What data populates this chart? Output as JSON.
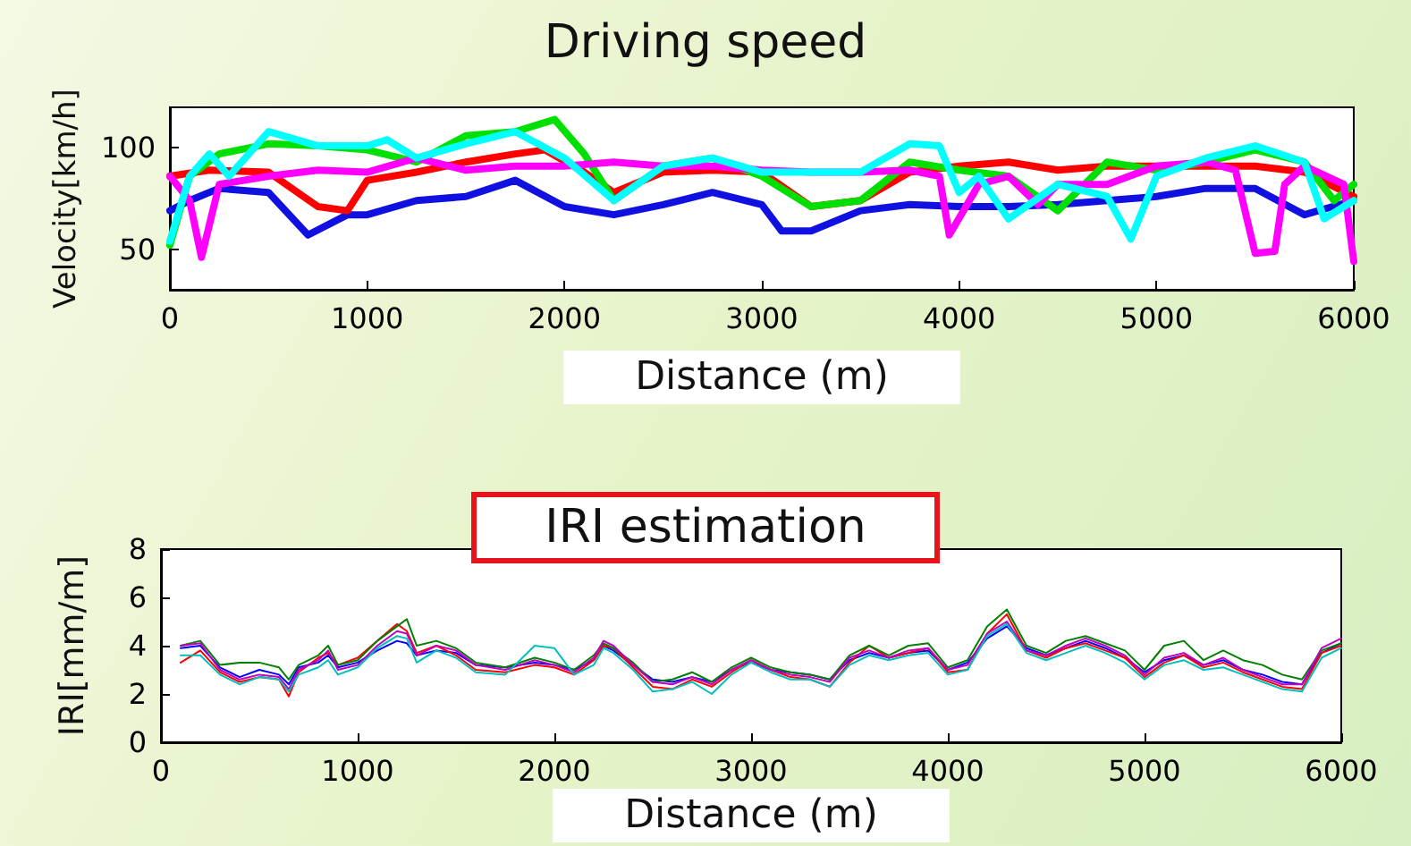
{
  "chart_data": [
    {
      "type": "line",
      "title": "Driving speed",
      "xlabel": "Distance (m)",
      "ylabel": "Velocity[km/h]",
      "xlim": [
        0,
        6000
      ],
      "xticks": [
        0,
        1000,
        2000,
        3000,
        4000,
        5000,
        6000
      ],
      "ylim": [
        30,
        120
      ],
      "yticks": [
        50,
        100
      ],
      "grid": false,
      "marker": "none",
      "series": [
        {
          "color": "#1010e0",
          "x": [
            0,
            100,
            250,
            500,
            700,
            900,
            1000,
            1250,
            1500,
            1750,
            2000,
            2250,
            2500,
            2750,
            3000,
            3100,
            3250,
            3500,
            3750,
            4000,
            4250,
            4500,
            4750,
            5000,
            5250,
            5500,
            5750,
            6000
          ],
          "values": [
            69,
            74,
            80,
            78,
            57,
            67,
            67,
            74,
            76,
            84,
            71,
            67,
            72,
            78,
            72,
            59,
            59,
            69,
            72,
            71,
            71,
            72,
            74,
            76,
            80,
            80,
            67,
            74
          ]
        },
        {
          "color": "#ff0000",
          "x": [
            0,
            200,
            500,
            750,
            900,
            1000,
            1250,
            1500,
            1750,
            1900,
            2100,
            2250,
            2500,
            2750,
            3000,
            3250,
            3500,
            3750,
            4000,
            4250,
            4500,
            4750,
            5000,
            5250,
            5500,
            5750,
            6000
          ],
          "values": [
            86,
            89,
            88,
            71,
            69,
            84,
            88,
            93,
            97,
            99,
            88,
            78,
            88,
            89,
            88,
            71,
            74,
            88,
            91,
            93,
            89,
            91,
            91,
            91,
            91,
            88,
            76
          ]
        },
        {
          "color": "#00e000",
          "x": [
            0,
            100,
            250,
            500,
            750,
            1000,
            1250,
            1500,
            1750,
            1950,
            2100,
            2250,
            2500,
            2750,
            3000,
            3250,
            3500,
            3750,
            4000,
            4250,
            4500,
            4750,
            5000,
            5250,
            5500,
            5750,
            5900,
            6000
          ],
          "values": [
            52,
            86,
            97,
            102,
            101,
            99,
            93,
            106,
            108,
            114,
            97,
            74,
            91,
            95,
            86,
            71,
            74,
            93,
            89,
            86,
            69,
            93,
            89,
            93,
            99,
            93,
            74,
            82
          ]
        },
        {
          "color": "#ff00ff",
          "x": [
            0,
            100,
            160,
            250,
            500,
            750,
            1000,
            1250,
            1500,
            1750,
            2000,
            2250,
            2500,
            2750,
            3000,
            3250,
            3500,
            3750,
            3900,
            3950,
            4100,
            4250,
            4400,
            4500,
            4750,
            5000,
            5250,
            5400,
            5500,
            5600,
            5650,
            5750,
            5950,
            6000
          ],
          "values": [
            86,
            74,
            46,
            82,
            86,
            89,
            88,
            95,
            89,
            91,
            91,
            93,
            91,
            91,
            89,
            88,
            88,
            89,
            86,
            57,
            82,
            86,
            72,
            82,
            82,
            91,
            93,
            89,
            48,
            49,
            82,
            91,
            82,
            44
          ]
        },
        {
          "color": "#00ffff",
          "x": [
            0,
            100,
            200,
            300,
            500,
            750,
            1000,
            1100,
            1250,
            1500,
            1750,
            2000,
            2250,
            2500,
            2750,
            3000,
            3250,
            3500,
            3750,
            3900,
            4000,
            4100,
            4250,
            4500,
            4750,
            4870,
            5000,
            5250,
            5500,
            5750,
            5850,
            6000
          ],
          "values": [
            54,
            86,
            97,
            86,
            108,
            101,
            101,
            104,
            95,
            102,
            108,
            95,
            74,
            91,
            95,
            88,
            88,
            88,
            102,
            101,
            78,
            86,
            65,
            82,
            76,
            55,
            86,
            95,
            101,
            93,
            65,
            74
          ]
        }
      ]
    },
    {
      "type": "line",
      "title": "IRI estimation",
      "xlabel": "Distance (m)",
      "ylabel": "IRI[mm/m]",
      "xlim": [
        0,
        6000
      ],
      "xticks": [
        0,
        1000,
        2000,
        3000,
        4000,
        5000,
        6000
      ],
      "ylim": [
        0,
        8
      ],
      "yticks": [
        0,
        2,
        4,
        6,
        8
      ],
      "grid": false,
      "marker": "none",
      "series": [
        {
          "color": "#0000ff",
          "x": [
            100,
            200,
            300,
            400,
            500,
            600,
            650,
            700,
            800,
            850,
            900,
            1000,
            1100,
            1200,
            1250,
            1300,
            1400,
            1500,
            1600,
            1750,
            1900,
            2000,
            2100,
            2200,
            2250,
            2300,
            2400,
            2500,
            2600,
            2700,
            2800,
            2900,
            3000,
            3100,
            3200,
            3300,
            3400,
            3500,
            3600,
            3700,
            3800,
            3900,
            4000,
            4100,
            4200,
            4300,
            4400,
            4500,
            4600,
            4700,
            4800,
            4900,
            5000,
            5100,
            5200,
            5300,
            5400,
            5500,
            5600,
            5700,
            5800,
            5900,
            6000
          ],
          "values": [
            3.9,
            4.0,
            3.1,
            2.7,
            3.0,
            2.8,
            2.4,
            3.1,
            3.3,
            3.6,
            3.1,
            3.3,
            3.8,
            4.2,
            4.1,
            3.6,
            3.8,
            3.7,
            3.2,
            3.1,
            3.3,
            3.2,
            3.0,
            3.4,
            4.0,
            3.8,
            3.2,
            2.6,
            2.5,
            2.7,
            2.5,
            3.0,
            3.3,
            3.0,
            2.9,
            2.8,
            2.6,
            3.4,
            3.7,
            3.5,
            3.7,
            3.8,
            3.0,
            3.3,
            4.3,
            4.8,
            3.9,
            3.6,
            3.9,
            4.2,
            3.9,
            3.5,
            2.9,
            3.4,
            3.6,
            3.2,
            3.4,
            3.0,
            2.8,
            2.5,
            2.4,
            3.7,
            4.1
          ]
        },
        {
          "color": "#ff0000",
          "x": [
            100,
            200,
            300,
            400,
            500,
            600,
            650,
            700,
            800,
            850,
            900,
            1000,
            1100,
            1200,
            1250,
            1300,
            1400,
            1500,
            1600,
            1750,
            1900,
            2000,
            2100,
            2200,
            2250,
            2300,
            2400,
            2500,
            2600,
            2700,
            2800,
            2900,
            3000,
            3100,
            3200,
            3300,
            3400,
            3500,
            3600,
            3700,
            3800,
            3900,
            4000,
            4100,
            4200,
            4300,
            4400,
            4500,
            4600,
            4700,
            4800,
            4900,
            5000,
            5100,
            5200,
            5300,
            5400,
            5500,
            5600,
            5700,
            5800,
            5900,
            6000
          ],
          "values": [
            3.3,
            3.8,
            2.9,
            2.5,
            2.7,
            2.6,
            1.9,
            2.9,
            3.5,
            3.7,
            3.2,
            3.5,
            4.2,
            4.9,
            4.6,
            3.7,
            4.0,
            3.6,
            3.0,
            2.9,
            3.2,
            3.1,
            2.8,
            3.4,
            4.0,
            3.9,
            3.1,
            2.3,
            2.2,
            2.6,
            2.3,
            2.9,
            3.4,
            3.0,
            2.7,
            2.6,
            2.3,
            3.3,
            4.0,
            3.5,
            3.7,
            3.9,
            2.9,
            3.0,
            4.5,
            5.3,
            3.8,
            3.5,
            3.9,
            4.1,
            3.8,
            3.5,
            2.7,
            3.3,
            3.6,
            3.1,
            3.3,
            2.9,
            2.6,
            2.3,
            2.2,
            3.7,
            4.0
          ]
        },
        {
          "color": "#008000",
          "x": [
            100,
            200,
            300,
            400,
            500,
            600,
            650,
            700,
            800,
            850,
            900,
            1000,
            1100,
            1200,
            1250,
            1300,
            1400,
            1500,
            1600,
            1750,
            1900,
            2000,
            2100,
            2200,
            2250,
            2300,
            2400,
            2500,
            2600,
            2700,
            2800,
            2900,
            3000,
            3100,
            3200,
            3300,
            3400,
            3500,
            3600,
            3700,
            3800,
            3900,
            4000,
            4100,
            4200,
            4300,
            4400,
            4500,
            4600,
            4700,
            4800,
            4900,
            5000,
            5100,
            5200,
            5300,
            5400,
            5500,
            5600,
            5700,
            5800,
            5900,
            6000
          ],
          "values": [
            4.0,
            4.2,
            3.2,
            3.3,
            3.3,
            3.1,
            2.6,
            3.2,
            3.6,
            4.0,
            3.2,
            3.4,
            4.2,
            4.8,
            5.1,
            4.0,
            4.2,
            3.9,
            3.3,
            3.1,
            3.5,
            3.3,
            3.0,
            3.6,
            4.1,
            3.9,
            3.3,
            2.5,
            2.6,
            2.9,
            2.5,
            3.1,
            3.5,
            3.1,
            2.9,
            2.8,
            2.6,
            3.6,
            4.0,
            3.6,
            4.0,
            4.1,
            3.1,
            3.4,
            4.8,
            5.5,
            4.0,
            3.7,
            4.2,
            4.4,
            4.1,
            3.8,
            3.0,
            4.0,
            4.2,
            3.4,
            3.8,
            3.4,
            3.2,
            2.8,
            2.6,
            3.8,
            4.1
          ]
        },
        {
          "color": "#bf00bf",
          "x": [
            100,
            200,
            300,
            400,
            500,
            600,
            650,
            700,
            800,
            850,
            900,
            1000,
            1100,
            1200,
            1250,
            1300,
            1400,
            1500,
            1600,
            1750,
            1900,
            2000,
            2100,
            2200,
            2250,
            2300,
            2400,
            2500,
            2600,
            2700,
            2800,
            2900,
            3000,
            3100,
            3200,
            3300,
            3400,
            3500,
            3600,
            3700,
            3800,
            3900,
            4000,
            4100,
            4200,
            4300,
            4400,
            4500,
            4600,
            4700,
            4800,
            4900,
            5000,
            5100,
            5200,
            5300,
            5400,
            5500,
            5600,
            5700,
            5800,
            5900,
            6000
          ],
          "values": [
            4.0,
            4.1,
            3.0,
            2.6,
            2.8,
            2.7,
            2.2,
            3.0,
            3.4,
            3.8,
            3.0,
            3.2,
            4.0,
            4.6,
            4.5,
            3.6,
            4.0,
            3.8,
            3.2,
            3.0,
            3.4,
            3.2,
            2.9,
            3.5,
            4.2,
            4.0,
            3.2,
            2.5,
            2.4,
            2.7,
            2.4,
            3.0,
            3.4,
            3.0,
            2.8,
            2.7,
            2.5,
            3.5,
            3.8,
            3.5,
            3.8,
            3.9,
            3.0,
            3.2,
            4.5,
            5.0,
            3.8,
            3.6,
            4.0,
            4.3,
            4.0,
            3.6,
            2.8,
            3.5,
            3.7,
            3.2,
            3.5,
            3.0,
            2.7,
            2.4,
            2.4,
            3.9,
            4.3
          ]
        },
        {
          "color": "#00bfbf",
          "x": [
            100,
            200,
            300,
            400,
            500,
            600,
            650,
            700,
            800,
            850,
            900,
            1000,
            1100,
            1200,
            1250,
            1300,
            1400,
            1500,
            1600,
            1750,
            1900,
            2000,
            2100,
            2200,
            2250,
            2300,
            2400,
            2500,
            2600,
            2700,
            2800,
            2900,
            3000,
            3100,
            3200,
            3300,
            3400,
            3500,
            3600,
            3700,
            3800,
            3900,
            4000,
            4100,
            4200,
            4300,
            4400,
            4500,
            4600,
            4700,
            4800,
            4900,
            5000,
            5100,
            5200,
            5300,
            5400,
            5500,
            5600,
            5700,
            5800,
            5900,
            6000
          ],
          "values": [
            3.6,
            3.6,
            2.8,
            2.4,
            2.7,
            2.6,
            2.1,
            2.8,
            3.1,
            3.4,
            2.8,
            3.1,
            3.9,
            4.4,
            4.3,
            3.3,
            3.8,
            3.5,
            2.9,
            2.8,
            4.0,
            3.9,
            2.8,
            3.2,
            3.9,
            3.7,
            3.0,
            2.1,
            2.2,
            2.5,
            2.0,
            2.8,
            3.3,
            2.9,
            2.6,
            2.6,
            2.3,
            3.2,
            3.6,
            3.4,
            3.6,
            3.7,
            2.8,
            3.0,
            4.4,
            4.9,
            3.7,
            3.4,
            3.7,
            4.0,
            3.7,
            3.3,
            2.6,
            3.2,
            3.4,
            3.0,
            3.1,
            2.8,
            2.5,
            2.2,
            2.1,
            3.5,
            3.9
          ]
        }
      ]
    }
  ]
}
